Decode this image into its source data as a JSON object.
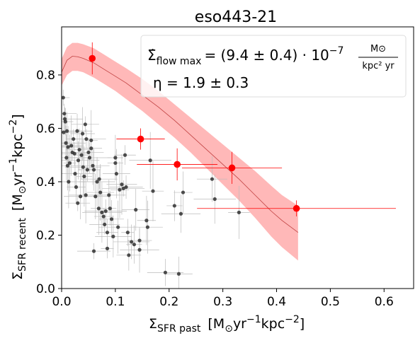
{
  "chart_data": {
    "type": "scatter",
    "title": "eso443-21",
    "xlabel": "Σ",
    "xlabel_sub": "SFR past",
    "xlabel_units": "[M",
    "xlabel_units_sub": "⊙",
    "xlabel_units_rest": "yr",
    "xlabel_units_exp1": "−1",
    "xlabel_units_kpc": "kpc",
    "xlabel_units_exp2": "−2",
    "xlabel_units_end": "]",
    "ylabel": "Σ",
    "ylabel_sub": "SFR recent",
    "ylabel_units": "[M",
    "ylabel_units_sub": "⊙",
    "ylabel_units_rest": "yr",
    "ylabel_units_exp1": "−1",
    "ylabel_units_kpc": "kpc",
    "ylabel_units_exp2": "−2",
    "ylabel_units_end": "]",
    "xlim": [
      0.0,
      0.655
    ],
    "ylim": [
      0.0,
      0.98
    ],
    "xticks": [
      "0.0",
      "0.1",
      "0.2",
      "0.3",
      "0.4",
      "0.5",
      "0.6"
    ],
    "yticks": [
      "0.0",
      "0.2",
      "0.4",
      "0.6",
      "0.8"
    ],
    "xtick_values": [
      0.0,
      0.1,
      0.2,
      0.3,
      0.4,
      0.5,
      0.6
    ],
    "ytick_values": [
      0.0,
      0.2,
      0.4,
      0.6,
      0.8
    ],
    "annotation": {
      "line1_main": "Σ̇",
      "line1_sub": "flow max",
      "line1_eq": "= (9.4 ± 0.4) · 10",
      "line1_exp": "−7",
      "line1_frac_num": "M⊙",
      "line1_frac_den": "kpc² yr",
      "line2": "η = 1.9 ± 0.3"
    },
    "colors": {
      "binned": "#ff0000",
      "pixels": "#303030",
      "model_band": "#ffb8b8",
      "model_line": "#c04040",
      "errorbar_gray": "#bbbbbb"
    },
    "model_curve": {
      "x": [
        0.0,
        0.01,
        0.02,
        0.03,
        0.04,
        0.06,
        0.08,
        0.1,
        0.12,
        0.15,
        0.18,
        0.21,
        0.24,
        0.27,
        0.3,
        0.33,
        0.36,
        0.39,
        0.41,
        0.44
      ],
      "y": [
        0.81,
        0.855,
        0.87,
        0.868,
        0.862,
        0.845,
        0.82,
        0.795,
        0.77,
        0.725,
        0.68,
        0.63,
        0.575,
        0.52,
        0.465,
        0.41,
        0.35,
        0.29,
        0.255,
        0.21
      ],
      "upper": [
        0.86,
        0.905,
        0.92,
        0.92,
        0.915,
        0.9,
        0.875,
        0.85,
        0.825,
        0.785,
        0.74,
        0.69,
        0.64,
        0.59,
        0.54,
        0.49,
        0.44,
        0.385,
        0.35,
        0.31
      ],
      "lower": [
        0.76,
        0.8,
        0.815,
        0.815,
        0.81,
        0.79,
        0.765,
        0.74,
        0.71,
        0.665,
        0.615,
        0.565,
        0.51,
        0.45,
        0.39,
        0.33,
        0.265,
        0.195,
        0.155,
        0.105
      ]
    },
    "binned_points": [
      {
        "x": 0.057,
        "y": 0.862,
        "xerr": 0.0,
        "yerr": 0.06
      },
      {
        "x": 0.147,
        "y": 0.56,
        "xerr": 0.045,
        "yerr": 0.04
      },
      {
        "x": 0.215,
        "y": 0.465,
        "xerr": 0.075,
        "yerr": 0.06
      },
      {
        "x": 0.317,
        "y": 0.452,
        "xerr": 0.093,
        "yerr": 0.06
      },
      {
        "x": 0.437,
        "y": 0.3,
        "xerr": 0.185,
        "yerr": 0.03
      }
    ],
    "pixel_points": [
      {
        "x": 0.003,
        "y": 0.715
      },
      {
        "x": 0.005,
        "y": 0.655
      },
      {
        "x": 0.006,
        "y": 0.635
      },
      {
        "x": 0.007,
        "y": 0.625
      },
      {
        "x": 0.004,
        "y": 0.585
      },
      {
        "x": 0.008,
        "y": 0.545
      },
      {
        "x": 0.01,
        "y": 0.59
      },
      {
        "x": 0.012,
        "y": 0.53
      },
      {
        "x": 0.009,
        "y": 0.49
      },
      {
        "x": 0.011,
        "y": 0.46
      },
      {
        "x": 0.013,
        "y": 0.4
      },
      {
        "x": 0.015,
        "y": 0.47
      },
      {
        "x": 0.018,
        "y": 0.535
      },
      {
        "x": 0.02,
        "y": 0.51
      },
      {
        "x": 0.022,
        "y": 0.56
      },
      {
        "x": 0.024,
        "y": 0.505
      },
      {
        "x": 0.025,
        "y": 0.43
      },
      {
        "x": 0.027,
        "y": 0.38
      },
      {
        "x": 0.029,
        "y": 0.59
      },
      {
        "x": 0.031,
        "y": 0.48
      },
      {
        "x": 0.033,
        "y": 0.52
      },
      {
        "x": 0.035,
        "y": 0.345
      },
      {
        "x": 0.037,
        "y": 0.5
      },
      {
        "x": 0.039,
        "y": 0.58
      },
      {
        "x": 0.04,
        "y": 0.455
      },
      {
        "x": 0.042,
        "y": 0.42
      },
      {
        "x": 0.044,
        "y": 0.615
      },
      {
        "x": 0.046,
        "y": 0.56
      },
      {
        "x": 0.048,
        "y": 0.445
      },
      {
        "x": 0.05,
        "y": 0.51
      },
      {
        "x": 0.052,
        "y": 0.49
      },
      {
        "x": 0.055,
        "y": 0.525
      },
      {
        "x": 0.058,
        "y": 0.46
      },
      {
        "x": 0.06,
        "y": 0.445
      },
      {
        "x": 0.063,
        "y": 0.345
      },
      {
        "x": 0.066,
        "y": 0.4
      },
      {
        "x": 0.069,
        "y": 0.3
      },
      {
        "x": 0.072,
        "y": 0.36
      },
      {
        "x": 0.075,
        "y": 0.285
      },
      {
        "x": 0.078,
        "y": 0.27
      },
      {
        "x": 0.08,
        "y": 0.24
      },
      {
        "x": 0.082,
        "y": 0.29
      },
      {
        "x": 0.085,
        "y": 0.21
      },
      {
        "x": 0.088,
        "y": 0.35
      },
      {
        "x": 0.09,
        "y": 0.3
      },
      {
        "x": 0.093,
        "y": 0.26
      },
      {
        "x": 0.096,
        "y": 0.195
      },
      {
        "x": 0.1,
        "y": 0.49
      },
      {
        "x": 0.102,
        "y": 0.43
      },
      {
        "x": 0.105,
        "y": 0.23
      },
      {
        "x": 0.108,
        "y": 0.37
      },
      {
        "x": 0.112,
        "y": 0.39
      },
      {
        "x": 0.115,
        "y": 0.375
      },
      {
        "x": 0.118,
        "y": 0.5
      },
      {
        "x": 0.12,
        "y": 0.38
      },
      {
        "x": 0.123,
        "y": 0.21
      },
      {
        "x": 0.125,
        "y": 0.125
      },
      {
        "x": 0.13,
        "y": 0.175
      },
      {
        "x": 0.135,
        "y": 0.165
      },
      {
        "x": 0.138,
        "y": 0.295
      },
      {
        "x": 0.145,
        "y": 0.145
      },
      {
        "x": 0.158,
        "y": 0.255
      },
      {
        "x": 0.16,
        "y": 0.23
      },
      {
        "x": 0.165,
        "y": 0.48
      },
      {
        "x": 0.17,
        "y": 0.365
      },
      {
        "x": 0.06,
        "y": 0.14
      },
      {
        "x": 0.085,
        "y": 0.15
      },
      {
        "x": 0.145,
        "y": 0.18
      },
      {
        "x": 0.193,
        "y": 0.06
      },
      {
        "x": 0.21,
        "y": 0.31
      },
      {
        "x": 0.218,
        "y": 0.055
      },
      {
        "x": 0.222,
        "y": 0.28
      },
      {
        "x": 0.226,
        "y": 0.36
      },
      {
        "x": 0.28,
        "y": 0.41
      },
      {
        "x": 0.285,
        "y": 0.335
      },
      {
        "x": 0.33,
        "y": 0.285
      },
      {
        "x": 0.045,
        "y": 0.35
      },
      {
        "x": 0.055,
        "y": 0.555
      },
      {
        "x": 0.03,
        "y": 0.32
      },
      {
        "x": 0.07,
        "y": 0.41
      },
      {
        "x": 0.1,
        "y": 0.47
      }
    ]
  }
}
